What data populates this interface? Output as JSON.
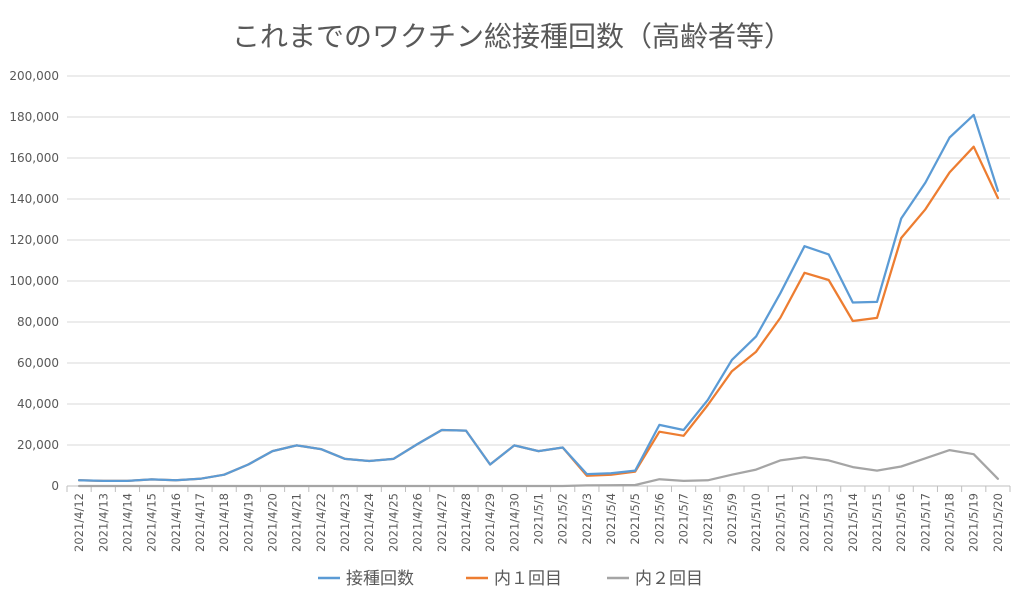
{
  "chart_data": {
    "type": "line",
    "title": "これまでのワクチン総接種回数（高齢者等）",
    "xlabel": "",
    "ylabel": "",
    "ylim": [
      0,
      200000
    ],
    "yticks": [
      0,
      20000,
      40000,
      60000,
      80000,
      100000,
      120000,
      140000,
      160000,
      180000,
      200000
    ],
    "ytick_labels": [
      "0",
      "20,000",
      "40,000",
      "60,000",
      "80,000",
      "100,000",
      "120,000",
      "140,000",
      "160,000",
      "180,000",
      "200,000"
    ],
    "grid": true,
    "legend_position": "bottom",
    "categories": [
      "2021/4/12",
      "2021/4/13",
      "2021/4/14",
      "2021/4/15",
      "2021/4/16",
      "2021/4/17",
      "2021/4/18",
      "2021/4/19",
      "2021/4/20",
      "2021/4/21",
      "2021/4/22",
      "2021/4/23",
      "2021/4/24",
      "2021/4/25",
      "2021/4/26",
      "2021/4/27",
      "2021/4/28",
      "2021/4/29",
      "2021/4/30",
      "2021/5/1",
      "2021/5/2",
      "2021/5/3",
      "2021/5/4",
      "2021/5/5",
      "2021/5/6",
      "2021/5/7",
      "2021/5/8",
      "2021/5/9",
      "2021/5/10",
      "2021/5/11",
      "2021/5/12",
      "2021/5/13",
      "2021/5/14",
      "2021/5/15",
      "2021/5/16",
      "2021/5/17",
      "2021/5/18",
      "2021/5/19",
      "2021/5/20"
    ],
    "series": [
      {
        "name": "接種回数",
        "color": "#5b9bd5",
        "values": [
          2800,
          2500,
          2500,
          3200,
          2800,
          3500,
          5500,
          10500,
          17000,
          19800,
          18000,
          13200,
          12200,
          13200,
          20500,
          27300,
          27000,
          10500,
          19800,
          17000,
          18800,
          5800,
          6200,
          7500,
          29800,
          27300,
          42000,
          61500,
          73000,
          94000,
          117000,
          113000,
          89500,
          89800,
          130500,
          148000,
          170000,
          181000,
          144000
        ]
      },
      {
        "name": "内１回目",
        "color": "#ed7d31",
        "values": [
          2800,
          2500,
          2500,
          3200,
          2800,
          3500,
          5500,
          10500,
          17000,
          19800,
          18000,
          13200,
          12200,
          13200,
          20500,
          27300,
          27000,
          10500,
          19800,
          17000,
          18800,
          5000,
          5500,
          7000,
          26500,
          24500,
          39500,
          56000,
          65500,
          82000,
          104000,
          100500,
          80500,
          82000,
          121000,
          135000,
          153000,
          165500,
          140500
        ]
      },
      {
        "name": "内２回目",
        "color": "#a5a5a5",
        "values": [
          0,
          0,
          0,
          0,
          0,
          0,
          0,
          0,
          0,
          0,
          0,
          0,
          0,
          0,
          0,
          0,
          0,
          0,
          0,
          0,
          0,
          300,
          400,
          500,
          3300,
          2500,
          2800,
          5500,
          8000,
          12500,
          14000,
          12500,
          9200,
          7500,
          9500,
          13500,
          17500,
          15500,
          3500
        ]
      }
    ]
  }
}
